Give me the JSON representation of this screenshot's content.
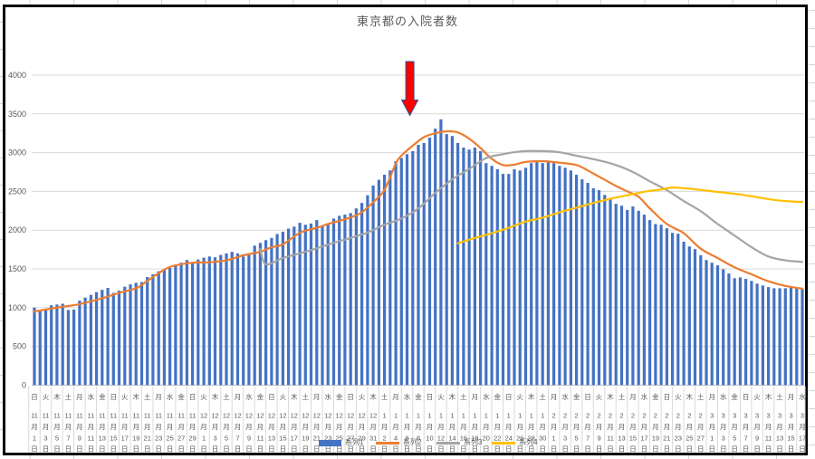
{
  "chart_data": {
    "type": "combo",
    "title": "東京都の入院者数",
    "grid": true,
    "y_axis": {
      "min": 0,
      "max": 4000,
      "step": 500,
      "ticks": [
        "0",
        "500",
        "1000",
        "1500",
        "2000",
        "2500",
        "3000",
        "3500",
        "4000"
      ]
    },
    "x_axis": {
      "start_date": "11月1日",
      "end_date": "3月17日",
      "label_every_days": 2,
      "month_suffix": "月",
      "day_suffix": "日",
      "labels": [
        {
          "w": "日",
          "m": "11",
          "d": "1"
        },
        {
          "w": "火",
          "m": "11",
          "d": "3"
        },
        {
          "w": "木",
          "m": "11",
          "d": "5"
        },
        {
          "w": "土",
          "m": "11",
          "d": "7"
        },
        {
          "w": "月",
          "m": "11",
          "d": "9"
        },
        {
          "w": "水",
          "m": "11",
          "d": "11"
        },
        {
          "w": "金",
          "m": "11",
          "d": "13"
        },
        {
          "w": "日",
          "m": "11",
          "d": "15"
        },
        {
          "w": "火",
          "m": "11",
          "d": "17"
        },
        {
          "w": "木",
          "m": "11",
          "d": "19"
        },
        {
          "w": "土",
          "m": "11",
          "d": "21"
        },
        {
          "w": "月",
          "m": "11",
          "d": "23"
        },
        {
          "w": "水",
          "m": "11",
          "d": "25"
        },
        {
          "w": "金",
          "m": "11",
          "d": "27"
        },
        {
          "w": "日",
          "m": "11",
          "d": "29"
        },
        {
          "w": "火",
          "m": "12",
          "d": "1"
        },
        {
          "w": "木",
          "m": "12",
          "d": "3"
        },
        {
          "w": "土",
          "m": "12",
          "d": "5"
        },
        {
          "w": "月",
          "m": "12",
          "d": "7"
        },
        {
          "w": "水",
          "m": "12",
          "d": "9"
        },
        {
          "w": "金",
          "m": "12",
          "d": "11"
        },
        {
          "w": "日",
          "m": "12",
          "d": "13"
        },
        {
          "w": "火",
          "m": "12",
          "d": "15"
        },
        {
          "w": "木",
          "m": "12",
          "d": "17"
        },
        {
          "w": "土",
          "m": "12",
          "d": "19"
        },
        {
          "w": "月",
          "m": "12",
          "d": "21"
        },
        {
          "w": "水",
          "m": "12",
          "d": "23"
        },
        {
          "w": "金",
          "m": "12",
          "d": "25"
        },
        {
          "w": "日",
          "m": "12",
          "d": "27"
        },
        {
          "w": "火",
          "m": "12",
          "d": "29"
        },
        {
          "w": "木",
          "m": "12",
          "d": "31"
        },
        {
          "w": "土",
          "m": "1",
          "d": "2"
        },
        {
          "w": "月",
          "m": "1",
          "d": "4"
        },
        {
          "w": "水",
          "m": "1",
          "d": "6"
        },
        {
          "w": "金",
          "m": "1",
          "d": "8"
        },
        {
          "w": "日",
          "m": "1",
          "d": "10"
        },
        {
          "w": "火",
          "m": "1",
          "d": "12"
        },
        {
          "w": "木",
          "m": "1",
          "d": "14"
        },
        {
          "w": "土",
          "m": "1",
          "d": "16"
        },
        {
          "w": "月",
          "m": "1",
          "d": "18"
        },
        {
          "w": "水",
          "m": "1",
          "d": "20"
        },
        {
          "w": "金",
          "m": "1",
          "d": "22"
        },
        {
          "w": "日",
          "m": "1",
          "d": "24"
        },
        {
          "w": "火",
          "m": "1",
          "d": "26"
        },
        {
          "w": "木",
          "m": "1",
          "d": "28"
        },
        {
          "w": "土",
          "m": "1",
          "d": "30"
        },
        {
          "w": "月",
          "m": "2",
          "d": "1"
        },
        {
          "w": "水",
          "m": "2",
          "d": "3"
        },
        {
          "w": "金",
          "m": "2",
          "d": "5"
        },
        {
          "w": "日",
          "m": "2",
          "d": "7"
        },
        {
          "w": "火",
          "m": "2",
          "d": "9"
        },
        {
          "w": "木",
          "m": "2",
          "d": "11"
        },
        {
          "w": "土",
          "m": "2",
          "d": "13"
        },
        {
          "w": "月",
          "m": "2",
          "d": "15"
        },
        {
          "w": "水",
          "m": "2",
          "d": "17"
        },
        {
          "w": "金",
          "m": "2",
          "d": "19"
        },
        {
          "w": "日",
          "m": "2",
          "d": "21"
        },
        {
          "w": "火",
          "m": "2",
          "d": "23"
        },
        {
          "w": "木",
          "m": "2",
          "d": "25"
        },
        {
          "w": "土",
          "m": "2",
          "d": "27"
        },
        {
          "w": "月",
          "m": "3",
          "d": "1"
        },
        {
          "w": "水",
          "m": "3",
          "d": "3"
        },
        {
          "w": "金",
          "m": "3",
          "d": "5"
        },
        {
          "w": "日",
          "m": "3",
          "d": "7"
        },
        {
          "w": "火",
          "m": "3",
          "d": "9"
        },
        {
          "w": "木",
          "m": "3",
          "d": "11"
        },
        {
          "w": "土",
          "m": "3",
          "d": "13"
        },
        {
          "w": "月",
          "m": "3",
          "d": "15"
        },
        {
          "w": "水",
          "m": "3",
          "d": "17"
        }
      ]
    },
    "bar_series": {
      "name": "系列1",
      "color": "#4472C4",
      "values": [
        1000,
        965,
        985,
        1030,
        1040,
        1050,
        970,
        975,
        1090,
        1130,
        1165,
        1200,
        1230,
        1255,
        1190,
        1220,
        1270,
        1300,
        1320,
        1330,
        1395,
        1430,
        1470,
        1485,
        1510,
        1545,
        1580,
        1615,
        1570,
        1620,
        1645,
        1660,
        1650,
        1680,
        1700,
        1720,
        1700,
        1660,
        1680,
        1800,
        1835,
        1870,
        1900,
        1950,
        1980,
        2020,
        2045,
        2095,
        2070,
        2085,
        2130,
        2045,
        2090,
        2150,
        2185,
        2200,
        2220,
        2280,
        2350,
        2450,
        2575,
        2650,
        2715,
        2770,
        2890,
        2930,
        2980,
        3020,
        3100,
        3125,
        3195,
        3310,
        3430,
        3240,
        3215,
        3125,
        3065,
        3040,
        3065,
        3020,
        2865,
        2830,
        2785,
        2725,
        2725,
        2785,
        2770,
        2805,
        2865,
        2890,
        2865,
        2890,
        2865,
        2830,
        2805,
        2770,
        2715,
        2655,
        2610,
        2540,
        2515,
        2455,
        2400,
        2340,
        2315,
        2260,
        2305,
        2250,
        2200,
        2130,
        2080,
        2070,
        2025,
        1965,
        1955,
        1850,
        1790,
        1755,
        1675,
        1615,
        1580,
        1545,
        1495,
        1440,
        1380,
        1390,
        1370,
        1345,
        1310,
        1285,
        1265,
        1250,
        1250,
        1250,
        1265,
        1250,
        1240
      ]
    },
    "line_series": [
      {
        "name": "系列2",
        "color": "#ED7D31",
        "points": [
          [
            0,
            950
          ],
          [
            4,
            1000
          ],
          [
            8,
            1045
          ],
          [
            12,
            1120
          ],
          [
            15,
            1190
          ],
          [
            18,
            1250
          ],
          [
            20,
            1345
          ],
          [
            23,
            1490
          ],
          [
            25,
            1545
          ],
          [
            28,
            1580
          ],
          [
            31,
            1585
          ],
          [
            34,
            1610
          ],
          [
            37,
            1675
          ],
          [
            40,
            1720
          ],
          [
            42,
            1780
          ],
          [
            44,
            1815
          ],
          [
            47,
            1965
          ],
          [
            50,
            2030
          ],
          [
            52,
            2080
          ],
          [
            54,
            2120
          ],
          [
            56,
            2165
          ],
          [
            58,
            2230
          ],
          [
            60,
            2360
          ],
          [
            62,
            2520
          ],
          [
            64,
            2860
          ],
          [
            65,
            2960
          ],
          [
            67,
            3090
          ],
          [
            69,
            3200
          ],
          [
            71,
            3250
          ],
          [
            73,
            3275
          ],
          [
            75,
            3260
          ],
          [
            77,
            3180
          ],
          [
            79,
            3060
          ],
          [
            81,
            2920
          ],
          [
            83,
            2840
          ],
          [
            85,
            2845
          ],
          [
            87,
            2880
          ],
          [
            90,
            2890
          ],
          [
            93,
            2870
          ],
          [
            96,
            2840
          ],
          [
            98,
            2770
          ],
          [
            100,
            2690
          ],
          [
            103,
            2570
          ],
          [
            105,
            2500
          ],
          [
            107,
            2430
          ],
          [
            109,
            2280
          ],
          [
            112,
            2080
          ],
          [
            115,
            1960
          ],
          [
            118,
            1760
          ],
          [
            121,
            1640
          ],
          [
            124,
            1520
          ],
          [
            127,
            1430
          ],
          [
            130,
            1340
          ],
          [
            133,
            1280
          ],
          [
            136,
            1245
          ]
        ]
      },
      {
        "name": "系列3",
        "color": "#A5A5A5",
        "points": [
          [
            40,
            1755
          ],
          [
            41,
            1560
          ],
          [
            44,
            1640
          ],
          [
            47,
            1700
          ],
          [
            50,
            1765
          ],
          [
            53,
            1835
          ],
          [
            56,
            1900
          ],
          [
            59,
            1970
          ],
          [
            62,
            2070
          ],
          [
            65,
            2150
          ],
          [
            68,
            2280
          ],
          [
            71,
            2480
          ],
          [
            74,
            2655
          ],
          [
            77,
            2790
          ],
          [
            80,
            2930
          ],
          [
            83,
            2980
          ],
          [
            86,
            3015
          ],
          [
            90,
            3020
          ],
          [
            93,
            3005
          ],
          [
            96,
            2960
          ],
          [
            100,
            2900
          ],
          [
            103,
            2840
          ],
          [
            106,
            2750
          ],
          [
            109,
            2630
          ],
          [
            112,
            2515
          ],
          [
            115,
            2375
          ],
          [
            118,
            2245
          ],
          [
            121,
            2080
          ],
          [
            124,
            1930
          ],
          [
            127,
            1780
          ],
          [
            130,
            1660
          ],
          [
            133,
            1610
          ],
          [
            136,
            1590
          ]
        ]
      },
      {
        "name": "系列4",
        "color": "#FFC000",
        "points": [
          [
            75,
            1830
          ],
          [
            78,
            1900
          ],
          [
            81,
            1960
          ],
          [
            84,
            2030
          ],
          [
            87,
            2110
          ],
          [
            90,
            2160
          ],
          [
            93,
            2230
          ],
          [
            96,
            2290
          ],
          [
            99,
            2350
          ],
          [
            102,
            2405
          ],
          [
            105,
            2450
          ],
          [
            108,
            2495
          ],
          [
            111,
            2525
          ],
          [
            113,
            2550
          ],
          [
            116,
            2535
          ],
          [
            119,
            2510
          ],
          [
            122,
            2485
          ],
          [
            125,
            2460
          ],
          [
            128,
            2425
          ],
          [
            131,
            2390
          ],
          [
            134,
            2370
          ],
          [
            136,
            2365
          ]
        ]
      }
    ],
    "annotation": {
      "type": "down-arrow",
      "day_index": 66.5,
      "fill": "#FE0000",
      "stroke": "#2F528F"
    },
    "legend": {
      "position": "bottom",
      "items": [
        {
          "label": "系列1",
          "swatch": "bar",
          "color": "#4472C4"
        },
        {
          "label": "系列2",
          "swatch": "line",
          "color": "#ED7D31"
        },
        {
          "label": "系列3",
          "swatch": "line",
          "color": "#A5A5A5"
        },
        {
          "label": "系列4",
          "swatch": "line",
          "color": "#FFC000"
        }
      ]
    },
    "colors": {
      "gridline": "#D9D9D9",
      "axis_line": "#BFBFBF",
      "text": "#595959"
    }
  }
}
